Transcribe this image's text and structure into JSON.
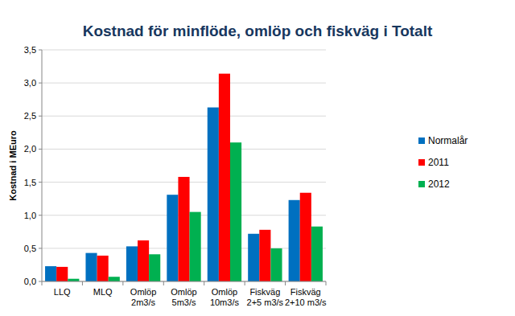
{
  "chart_data": {
    "type": "bar",
    "title": "Kostnad för minflöde, omlöp och fiskväg i Totalt",
    "y_label": "Kostnad i MEuro",
    "categories": [
      "LLQ",
      "MLQ",
      "Omlöp 2m3/s",
      "Omlöp 5m3/s",
      "Omlöp 10m3/s",
      "Fiskväg 2+5 m3/s",
      "Fiskväg 2+10 m3/s"
    ],
    "series": [
      {
        "name": "Normalår",
        "color": "#0070c0",
        "values": [
          0.23,
          0.43,
          0.53,
          1.31,
          2.63,
          0.72,
          1.23
        ]
      },
      {
        "name": "2011",
        "color": "#ff0000",
        "values": [
          0.22,
          0.39,
          0.62,
          1.58,
          3.14,
          0.78,
          1.34
        ]
      },
      {
        "name": "2012",
        "color": "#00b050",
        "values": [
          0.04,
          0.07,
          0.41,
          1.05,
          2.1,
          0.5,
          0.83
        ]
      }
    ],
    "ylim": [
      0,
      3.5
    ],
    "yticks": [
      {
        "value": 0,
        "label": "0,0"
      },
      {
        "value": 0.5,
        "label": "0,5"
      },
      {
        "value": 1,
        "label": "1,0"
      },
      {
        "value": 1.5,
        "label": "1,5"
      },
      {
        "value": 2,
        "label": "2,0"
      },
      {
        "value": 2.5,
        "label": "2,5"
      },
      {
        "value": 3,
        "label": "3,0"
      },
      {
        "value": 3.5,
        "label": "3,5"
      }
    ],
    "grid": true,
    "legend": "right"
  }
}
